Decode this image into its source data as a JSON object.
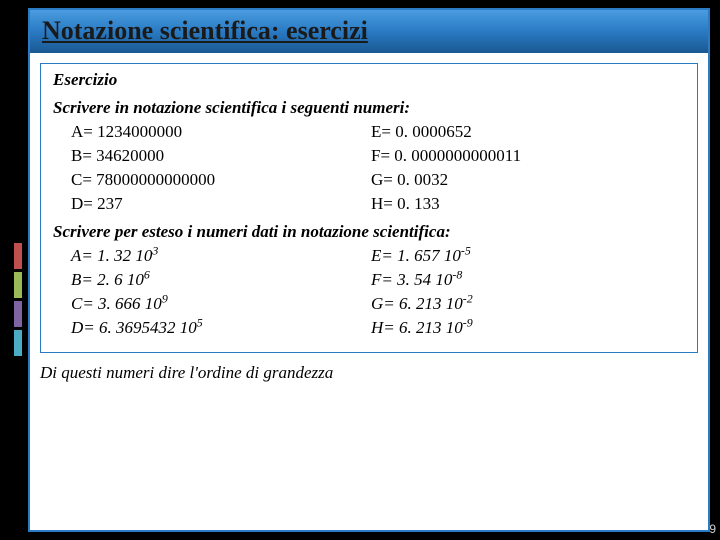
{
  "title": "Notazione scientifica: esercizi",
  "exercise_label": "Esercizio",
  "instruction1": "Scrivere in notazione scientifica i seguenti numeri:",
  "set1": {
    "A": "A= 1234000000",
    "B": "B= 34620000",
    "C": "C= 78000000000000",
    "D": "D= 237",
    "E": "E= 0. 0000652",
    "F": "F= 0. 0000000000011",
    "G": "G= 0. 0032",
    "H": "H= 0. 133"
  },
  "instruction2": "Scrivere per esteso i numeri dati in notazione scientifica:",
  "set2": {
    "A": {
      "base": "A= 1. 32 10",
      "exp": "3"
    },
    "B": {
      "base": "B= 2. 6 10",
      "exp": "6"
    },
    "C": {
      "base": "C= 3. 666 10",
      "exp": "9"
    },
    "D": {
      "base": "D= 6. 3695432 10",
      "exp": "5"
    },
    "E": {
      "base": "E= 1. 657 10",
      "exp": "-5"
    },
    "F": {
      "base": "F= 3. 54 10",
      "exp": "-8"
    },
    "G": {
      "base": "G= 6. 213 10",
      "exp": "-2"
    },
    "H": {
      "base": "H= 6. 213 10",
      "exp": "-9"
    }
  },
  "footer_note": "Di questi numeri dire l'ordine di grandezza",
  "page_number": "9",
  "colors": {
    "frame_border": "#2a7bc4",
    "title_gradient_top": "#4a9de0",
    "title_gradient_bottom": "#1a5a94",
    "stripe_red": "#c0504d",
    "stripe_green": "#9bbb59",
    "stripe_purple": "#8064a2",
    "stripe_teal": "#4bacc6"
  }
}
